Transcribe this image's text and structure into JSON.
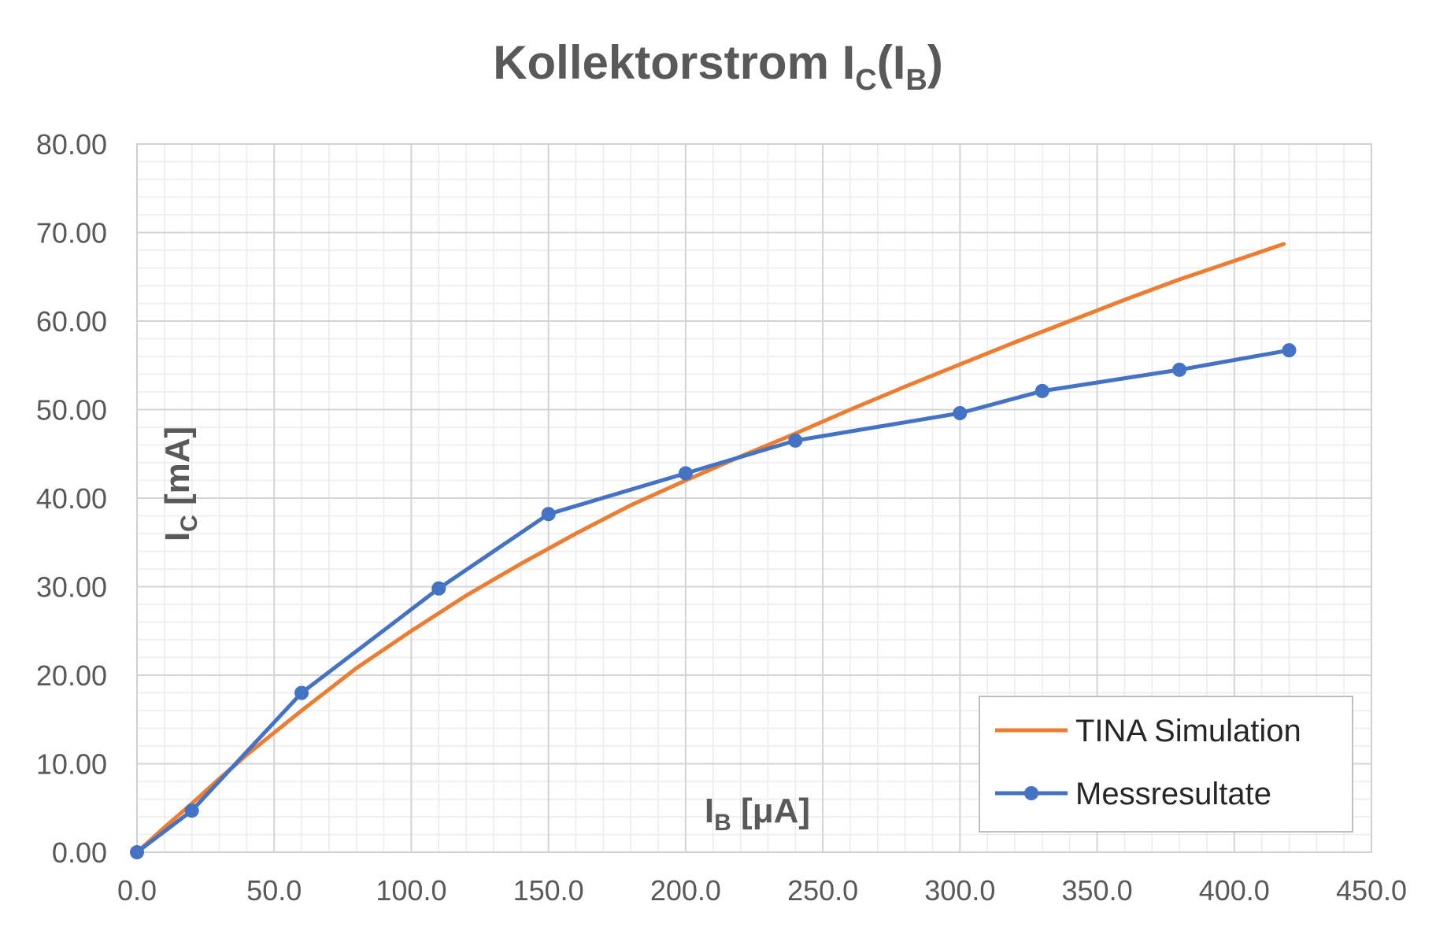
{
  "chart_data": {
    "type": "line",
    "title": "Kollektorstrom I",
    "title_sub1": "C",
    "title_mid": "(I",
    "title_sub2": "B",
    "title_end": ")",
    "ylabel_main": "I",
    "ylabel_sub": "C",
    "ylabel_unit": " [mA]",
    "xlabel_main": "I",
    "xlabel_sub": "B",
    "xlabel_unit": " [μA]",
    "xlim": [
      0,
      450
    ],
    "ylim": [
      0,
      80
    ],
    "x_major_step": 50,
    "x_minor_step": 10,
    "y_major_step": 10,
    "y_minor_step": 2,
    "x_tick_labels": [
      "0.0",
      "50.0",
      "100.0",
      "150.0",
      "200.0",
      "250.0",
      "300.0",
      "350.0",
      "400.0",
      "450.0"
    ],
    "y_tick_labels": [
      "0.00",
      "10.00",
      "20.00",
      "30.00",
      "40.00",
      "50.00",
      "60.00",
      "70.00",
      "80.00"
    ],
    "grid": true,
    "legend_position": "bottom-right",
    "series": [
      {
        "name": "TINA Simulation",
        "color": "#ED7D31",
        "markers": false,
        "x": [
          0,
          10,
          20,
          30,
          40,
          50,
          60,
          80,
          100,
          120,
          140,
          160,
          180,
          200,
          220,
          240,
          260,
          280,
          300,
          320,
          340,
          360,
          380,
          400,
          418
        ],
        "y": [
          0,
          2.8,
          5.5,
          8.3,
          11,
          13.5,
          16,
          20.8,
          25,
          29,
          32.6,
          36,
          39.2,
          42,
          44.7,
          47.3,
          50,
          52.6,
          55.1,
          57.6,
          60,
          62.4,
          64.7,
          66.8,
          68.7
        ]
      },
      {
        "name": "Messresultate",
        "color": "#4472C4",
        "markers": true,
        "x": [
          0,
          20,
          60,
          110,
          150,
          200,
          240,
          300,
          330,
          380,
          420
        ],
        "y": [
          0,
          4.7,
          18,
          29.8,
          38.2,
          42.8,
          46.5,
          49.6,
          52.1,
          54.5,
          56.7
        ]
      }
    ]
  }
}
